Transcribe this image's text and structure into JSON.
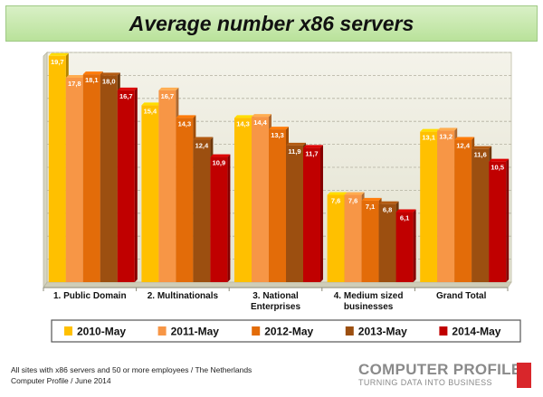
{
  "chart_data": {
    "type": "bar",
    "title": "Average number x86 servers",
    "categories": [
      [
        "1. Public Domain"
      ],
      [
        "2. Multinationals"
      ],
      [
        "3. National",
        "Enterprises"
      ],
      [
        "4. Medium sized",
        "businesses"
      ],
      [
        "Grand Total"
      ]
    ],
    "series": [
      {
        "name": "2010-May",
        "color": "#ffc000",
        "values": [
          19.7,
          15.4,
          14.3,
          7.6,
          13.1
        ],
        "labels": [
          "19,7",
          "15,4",
          "14,3",
          "7,6",
          "13,1"
        ]
      },
      {
        "name": "2011-May",
        "color": "#f79646",
        "values": [
          17.8,
          16.7,
          14.4,
          7.6,
          13.2
        ],
        "labels": [
          "17,8",
          "16,7",
          "14,4",
          "7,6",
          "13,2"
        ]
      },
      {
        "name": "2012-May",
        "color": "#e36c09",
        "values": [
          18.1,
          14.3,
          13.3,
          7.1,
          12.4
        ],
        "labels": [
          "18,1",
          "14,3",
          "13,3",
          "7,1",
          "12,4"
        ]
      },
      {
        "name": "2013-May",
        "color": "#9c4f10",
        "values": [
          18.0,
          12.4,
          11.9,
          6.8,
          11.6
        ],
        "labels": [
          "18,0",
          "12,4",
          "11,9",
          "6,8",
          "11,6"
        ]
      },
      {
        "name": "2014-May",
        "color": "#c00000",
        "values": [
          16.7,
          10.9,
          11.7,
          6.1,
          10.5
        ],
        "labels": [
          "16,7",
          "10,9",
          "11,7",
          "6,1",
          "10,5"
        ]
      }
    ],
    "ylim": [
      0,
      20
    ],
    "grid": true,
    "legend_position": "bottom"
  },
  "footnote": {
    "line1": "All sites with x86 servers and 50 or more employees / The Netherlands",
    "line2": "Computer Profile / June 2014"
  },
  "logo": {
    "main": "COMPUTER PROFILE",
    "tagline": "TURNING DATA INTO BUSINESS"
  }
}
